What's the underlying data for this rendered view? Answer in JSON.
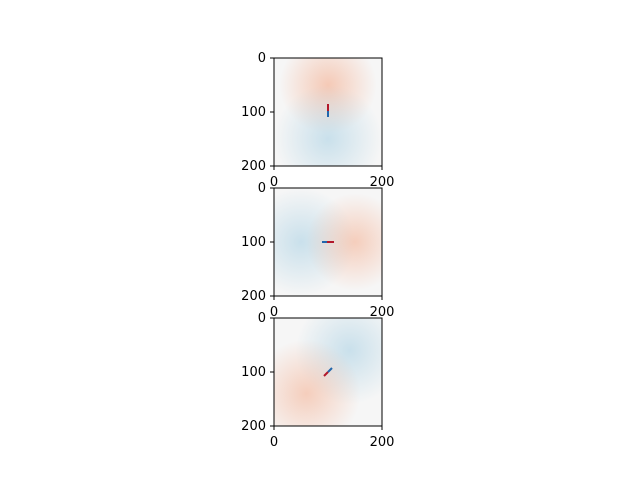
{
  "chart_data": [
    {
      "type": "heatmap",
      "field": "vertical-dipole",
      "x_ticks": [
        "0",
        "200"
      ],
      "y_ticks": [
        "0",
        "100",
        "200"
      ],
      "xlim": [
        0,
        200
      ],
      "ylim": [
        200,
        0
      ],
      "colormap": "diverging-blue-white-red",
      "center": [
        100,
        100
      ],
      "pole_direction": "up",
      "positive_color": "#d6604d",
      "negative_color": "#2166ac"
    },
    {
      "type": "heatmap",
      "field": "horizontal-dipole",
      "x_ticks": [
        "0",
        "200"
      ],
      "y_ticks": [
        "0",
        "100",
        "200"
      ],
      "xlim": [
        0,
        200
      ],
      "ylim": [
        200,
        0
      ],
      "colormap": "diverging-blue-white-red",
      "center": [
        100,
        100
      ],
      "pole_direction": "right",
      "positive_color": "#d6604d",
      "negative_color": "#2166ac"
    },
    {
      "type": "heatmap",
      "field": "diagonal-dipole",
      "x_ticks": [
        "0",
        "200"
      ],
      "y_ticks": [
        "0",
        "100",
        "200"
      ],
      "xlim": [
        0,
        200
      ],
      "ylim": [
        200,
        0
      ],
      "colormap": "diverging-blue-white-red",
      "center": [
        100,
        100
      ],
      "pole_direction": "down-left",
      "positive_color": "#d6604d",
      "negative_color": "#2166ac"
    }
  ]
}
